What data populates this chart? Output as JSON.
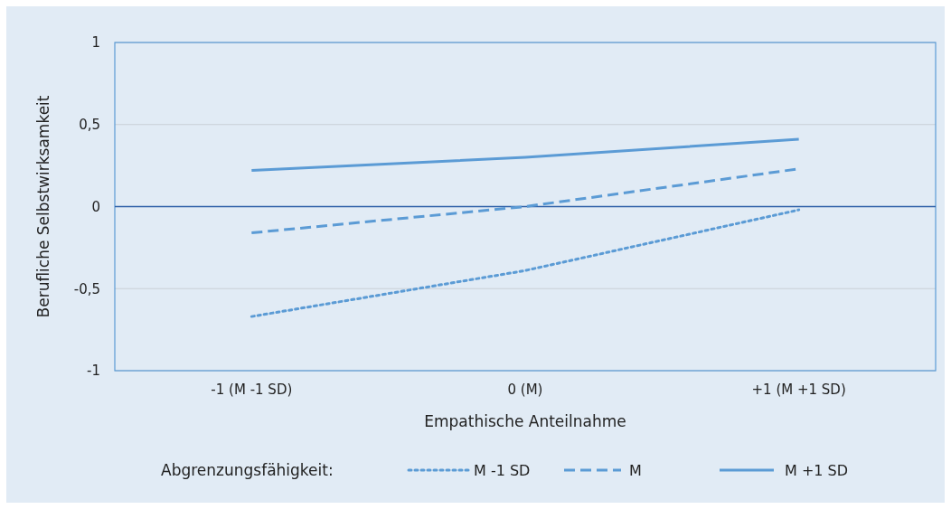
{
  "chart_data": {
    "type": "line",
    "xlabel": "Empathische Anteilnahme",
    "ylabel": "Berufliche Selbstwirksamkeit",
    "legend_title": "Abgrenzungsfähigkeit:",
    "categories": [
      "-1 (M -1 SD)",
      "0 (M)",
      "+1 (M +1 SD)"
    ],
    "ylim": [
      -1,
      1
    ],
    "yticks": [
      -1,
      {
        "value": -0.5,
        "label": "-0,5"
      },
      0,
      {
        "value": 0.5,
        "label": "0,5"
      },
      1
    ],
    "grid": "y",
    "ref_lines": [
      {
        "axis": "y",
        "value": 0,
        "color": "#2e5fa8"
      }
    ],
    "legend": "bottom",
    "marker": "none",
    "series": [
      {
        "name": "M -1 SD",
        "color": "#5b9bd5",
        "line_style": "dotted",
        "values": [
          -0.67,
          -0.39,
          -0.02
        ]
      },
      {
        "name": "M",
        "color": "#5b9bd5",
        "line_style": "dashed",
        "values": [
          -0.16,
          0.0,
          0.23
        ]
      },
      {
        "name": "M +1 SD",
        "color": "#5b9bd5",
        "line_style": "solid",
        "values": [
          0.22,
          0.3,
          0.41
        ]
      }
    ]
  }
}
